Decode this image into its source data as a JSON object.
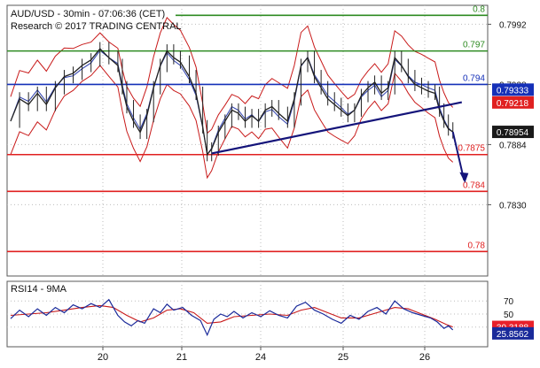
{
  "header": {
    "line1": "AUD/USD - 30min - 07:06:36 (CET)",
    "line2": "Research © 2017 TRADING CENTRAL"
  },
  "rsi_panel": {
    "title": "RSI14 - 9MA",
    "ticks": [
      70,
      50,
      30
    ],
    "badges": [
      {
        "value": "30.3188",
        "color": "#e8202a"
      },
      {
        "value": "25.8562",
        "color": "#1a2a9a"
      }
    ]
  },
  "colors": {
    "resistance": "#2e8b22",
    "pivot": "#1530b8",
    "support": "#e02020",
    "trendline": "#14147a",
    "bollinger": "#c81a1a",
    "price": "#222222"
  },
  "chart_data": {
    "type": "line",
    "title": "AUD/USD - 30min",
    "x_ticks": [
      "20",
      "21",
      "24",
      "25",
      "26"
    ],
    "y_ticks": [
      0.7992,
      0.7938,
      0.7884,
      0.783
    ],
    "ylim": [
      0.7766,
      0.8009
    ],
    "levels": [
      {
        "label": "0.8",
        "value": 0.8,
        "kind": "resistance"
      },
      {
        "label": "0.797",
        "value": 0.7968,
        "kind": "resistance"
      },
      {
        "label": "0.794",
        "value": 0.7938,
        "kind": "pivot"
      },
      {
        "label": "0.7875",
        "value": 0.7875,
        "kind": "support"
      },
      {
        "label": "0.784",
        "value": 0.7842,
        "kind": "support"
      },
      {
        "label": "0.78",
        "value": 0.7788,
        "kind": "support"
      }
    ],
    "price_badges": [
      {
        "value": "0.79333",
        "color": "#1530b8"
      },
      {
        "value": "0.79218",
        "color": "#e02020"
      },
      {
        "value": "0.78954",
        "color": "#1a1a1a"
      }
    ],
    "close_series": [
      {
        "x": 0,
        "y": 0.7905
      },
      {
        "x": 4,
        "y": 0.7925
      },
      {
        "x": 8,
        "y": 0.792
      },
      {
        "x": 12,
        "y": 0.793
      },
      {
        "x": 16,
        "y": 0.792
      },
      {
        "x": 20,
        "y": 0.7935
      },
      {
        "x": 24,
        "y": 0.7945
      },
      {
        "x": 28,
        "y": 0.7948
      },
      {
        "x": 32,
        "y": 0.7955
      },
      {
        "x": 36,
        "y": 0.796
      },
      {
        "x": 40,
        "y": 0.797
      },
      {
        "x": 44,
        "y": 0.7962
      },
      {
        "x": 48,
        "y": 0.7955
      },
      {
        "x": 50,
        "y": 0.7935
      },
      {
        "x": 52,
        "y": 0.7918
      },
      {
        "x": 55,
        "y": 0.7905
      },
      {
        "x": 58,
        "y": 0.7895
      },
      {
        "x": 61,
        "y": 0.791
      },
      {
        "x": 64,
        "y": 0.7935
      },
      {
        "x": 67,
        "y": 0.7955
      },
      {
        "x": 70,
        "y": 0.7968
      },
      {
        "x": 73,
        "y": 0.7962
      },
      {
        "x": 76,
        "y": 0.7958
      },
      {
        "x": 80,
        "y": 0.7945
      },
      {
        "x": 83,
        "y": 0.793
      },
      {
        "x": 86,
        "y": 0.79
      },
      {
        "x": 88,
        "y": 0.7875
      },
      {
        "x": 90,
        "y": 0.788
      },
      {
        "x": 93,
        "y": 0.7895
      },
      {
        "x": 96,
        "y": 0.7905
      },
      {
        "x": 99,
        "y": 0.7915
      },
      {
        "x": 102,
        "y": 0.7912
      },
      {
        "x": 105,
        "y": 0.7905
      },
      {
        "x": 108,
        "y": 0.791
      },
      {
        "x": 111,
        "y": 0.7905
      },
      {
        "x": 114,
        "y": 0.7915
      },
      {
        "x": 117,
        "y": 0.7918
      },
      {
        "x": 120,
        "y": 0.7912
      },
      {
        "x": 124,
        "y": 0.7905
      },
      {
        "x": 127,
        "y": 0.7925
      },
      {
        "x": 130,
        "y": 0.7955
      },
      {
        "x": 133,
        "y": 0.7962
      },
      {
        "x": 136,
        "y": 0.7945
      },
      {
        "x": 139,
        "y": 0.7935
      },
      {
        "x": 142,
        "y": 0.7925
      },
      {
        "x": 145,
        "y": 0.792
      },
      {
        "x": 148,
        "y": 0.7915
      },
      {
        "x": 151,
        "y": 0.791
      },
      {
        "x": 154,
        "y": 0.7915
      },
      {
        "x": 157,
        "y": 0.7928
      },
      {
        "x": 160,
        "y": 0.7935
      },
      {
        "x": 163,
        "y": 0.794
      },
      {
        "x": 166,
        "y": 0.793
      },
      {
        "x": 169,
        "y": 0.7935
      },
      {
        "x": 172,
        "y": 0.7962
      },
      {
        "x": 175,
        "y": 0.7955
      },
      {
        "x": 178,
        "y": 0.7945
      },
      {
        "x": 181,
        "y": 0.7938
      },
      {
        "x": 184,
        "y": 0.7935
      },
      {
        "x": 187,
        "y": 0.7932
      },
      {
        "x": 190,
        "y": 0.793
      },
      {
        "x": 192,
        "y": 0.7915
      },
      {
        "x": 194,
        "y": 0.7905
      },
      {
        "x": 196,
        "y": 0.7898
      },
      {
        "x": 198,
        "y": 0.78954
      }
    ],
    "trendline": [
      {
        "x": 90,
        "y": 0.7876
      },
      {
        "x": 202,
        "y": 0.7922
      }
    ],
    "forecast_arrow": [
      {
        "x": 198,
        "y": 0.78954
      },
      {
        "x": 203,
        "y": 0.7852
      }
    ],
    "rsi_series": [
      {
        "x": 0,
        "y": 43
      },
      {
        "x": 4,
        "y": 56
      },
      {
        "x": 8,
        "y": 46
      },
      {
        "x": 12,
        "y": 58
      },
      {
        "x": 16,
        "y": 48
      },
      {
        "x": 20,
        "y": 60
      },
      {
        "x": 24,
        "y": 52
      },
      {
        "x": 28,
        "y": 64
      },
      {
        "x": 32,
        "y": 58
      },
      {
        "x": 36,
        "y": 66
      },
      {
        "x": 40,
        "y": 60
      },
      {
        "x": 44,
        "y": 72
      },
      {
        "x": 48,
        "y": 48
      },
      {
        "x": 51,
        "y": 38
      },
      {
        "x": 54,
        "y": 32
      },
      {
        "x": 57,
        "y": 40
      },
      {
        "x": 60,
        "y": 36
      },
      {
        "x": 64,
        "y": 58
      },
      {
        "x": 67,
        "y": 52
      },
      {
        "x": 70,
        "y": 65
      },
      {
        "x": 73,
        "y": 56
      },
      {
        "x": 77,
        "y": 60
      },
      {
        "x": 81,
        "y": 48
      },
      {
        "x": 85,
        "y": 40
      },
      {
        "x": 88,
        "y": 18
      },
      {
        "x": 91,
        "y": 42
      },
      {
        "x": 94,
        "y": 50
      },
      {
        "x": 97,
        "y": 46
      },
      {
        "x": 100,
        "y": 54
      },
      {
        "x": 104,
        "y": 44
      },
      {
        "x": 108,
        "y": 52
      },
      {
        "x": 112,
        "y": 46
      },
      {
        "x": 116,
        "y": 55
      },
      {
        "x": 120,
        "y": 48
      },
      {
        "x": 124,
        "y": 44
      },
      {
        "x": 128,
        "y": 62
      },
      {
        "x": 132,
        "y": 68
      },
      {
        "x": 136,
        "y": 56
      },
      {
        "x": 140,
        "y": 50
      },
      {
        "x": 144,
        "y": 42
      },
      {
        "x": 148,
        "y": 36
      },
      {
        "x": 152,
        "y": 48
      },
      {
        "x": 156,
        "y": 42
      },
      {
        "x": 160,
        "y": 54
      },
      {
        "x": 164,
        "y": 60
      },
      {
        "x": 168,
        "y": 50
      },
      {
        "x": 172,
        "y": 70
      },
      {
        "x": 176,
        "y": 58
      },
      {
        "x": 180,
        "y": 52
      },
      {
        "x": 184,
        "y": 48
      },
      {
        "x": 188,
        "y": 44
      },
      {
        "x": 191,
        "y": 38
      },
      {
        "x": 194,
        "y": 28
      },
      {
        "x": 196,
        "y": 32
      },
      {
        "x": 198,
        "y": 25.86
      }
    ],
    "rsi_ma_series": [
      {
        "x": 0,
        "y": 48
      },
      {
        "x": 8,
        "y": 50
      },
      {
        "x": 16,
        "y": 52
      },
      {
        "x": 24,
        "y": 56
      },
      {
        "x": 32,
        "y": 60
      },
      {
        "x": 40,
        "y": 63
      },
      {
        "x": 46,
        "y": 60
      },
      {
        "x": 52,
        "y": 48
      },
      {
        "x": 58,
        "y": 38
      },
      {
        "x": 64,
        "y": 44
      },
      {
        "x": 70,
        "y": 56
      },
      {
        "x": 76,
        "y": 58
      },
      {
        "x": 82,
        "y": 52
      },
      {
        "x": 88,
        "y": 36
      },
      {
        "x": 94,
        "y": 38
      },
      {
        "x": 100,
        "y": 46
      },
      {
        "x": 108,
        "y": 48
      },
      {
        "x": 116,
        "y": 50
      },
      {
        "x": 124,
        "y": 48
      },
      {
        "x": 130,
        "y": 56
      },
      {
        "x": 136,
        "y": 60
      },
      {
        "x": 142,
        "y": 52
      },
      {
        "x": 148,
        "y": 44
      },
      {
        "x": 156,
        "y": 44
      },
      {
        "x": 164,
        "y": 52
      },
      {
        "x": 172,
        "y": 60
      },
      {
        "x": 178,
        "y": 58
      },
      {
        "x": 184,
        "y": 50
      },
      {
        "x": 190,
        "y": 42
      },
      {
        "x": 195,
        "y": 34
      },
      {
        "x": 198,
        "y": 30.32
      }
    ]
  }
}
